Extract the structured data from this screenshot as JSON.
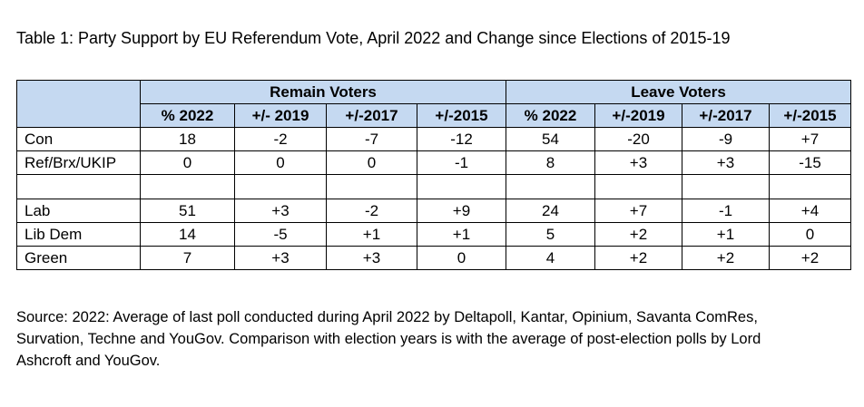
{
  "title": "Table 1: Party Support by EU Referendum Vote, April 2022 and Change since Elections of 2015-19",
  "table": {
    "groups": [
      "Remain Voters",
      "Leave Voters"
    ],
    "columns": [
      "% 2022",
      "+/- 2019",
      "+/-2017",
      "+/-2015",
      "% 2022",
      "+/-2019",
      "+/-2017",
      "+/-2015"
    ],
    "rows": [
      {
        "party": "Con",
        "values": [
          "18",
          "-2",
          "-7",
          "-12",
          "54",
          "-20",
          "-9",
          "+7"
        ]
      },
      {
        "party": "Ref/Brx/UKIP",
        "values": [
          "0",
          "0",
          "0",
          "-1",
          "8",
          "+3",
          "+3",
          "-15"
        ]
      },
      {
        "party": "Lab",
        "values": [
          "51",
          "+3",
          "-2",
          "+9",
          "24",
          "+7",
          "-1",
          "+4"
        ]
      },
      {
        "party": "Lib Dem",
        "values": [
          "14",
          "-5",
          "+1",
          "+1",
          "5",
          "+2",
          "+1",
          "0"
        ]
      },
      {
        "party": "Green",
        "values": [
          "7",
          "+3",
          "+3",
          "0",
          "4",
          "+2",
          "+2",
          "+2"
        ]
      }
    ]
  },
  "source": "Source: 2022: Average of last poll conducted during April 2022 by Deltapoll, Kantar, Opinium, Savanta ComRes, Survation, Techne and YouGov. Comparison with election years is with the average of post-election polls by Lord Ashcroft and YouGov.",
  "colors": {
    "header_fill": "#c5d9f1",
    "border": "#000000"
  }
}
